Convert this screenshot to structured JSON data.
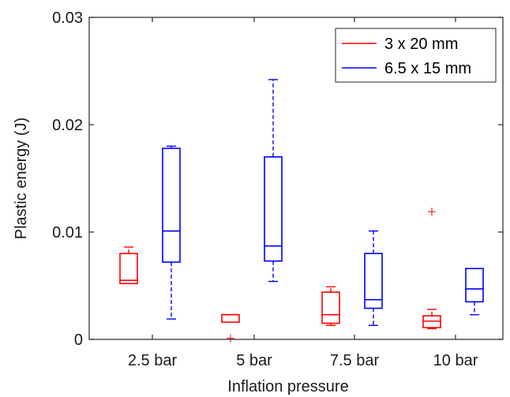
{
  "chart_data": {
    "type": "boxplot",
    "title": "",
    "xlabel": "Inflation pressure",
    "ylabel": "Plastic energy (J)",
    "categories": [
      "2.5 bar",
      "5 bar",
      "7.5 bar",
      "10 bar"
    ],
    "ylim": [
      0,
      0.03
    ],
    "yticks": [
      0,
      0.01,
      0.02,
      0.03
    ],
    "ytick_labels": [
      "0",
      "0.01",
      "0.02",
      "0.03"
    ],
    "grid": false,
    "legend_position": "top-right",
    "series": [
      {
        "name": "3 x 20 mm",
        "color": "#ff0000",
        "boxes": [
          {
            "category": "2.5 bar",
            "whisker_low": 0.0052,
            "q1": 0.0052,
            "median": 0.0055,
            "q3": 0.008,
            "whisker_high": 0.0086,
            "outliers": []
          },
          {
            "category": "5 bar",
            "whisker_low": 0.0016,
            "q1": 0.0016,
            "median": 0.0023,
            "q3": 0.0023,
            "whisker_high": 0.0023,
            "outliers": [
              0.0001
            ]
          },
          {
            "category": "7.5 bar",
            "whisker_low": 0.0013,
            "q1": 0.0015,
            "median": 0.0023,
            "q3": 0.0044,
            "whisker_high": 0.0049,
            "outliers": []
          },
          {
            "category": "10 bar",
            "whisker_low": 0.001,
            "q1": 0.0011,
            "median": 0.0017,
            "q3": 0.0022,
            "whisker_high": 0.0028,
            "outliers": [
              0.0119
            ]
          }
        ]
      },
      {
        "name": "6.5 x 15 mm",
        "color": "#0000ff",
        "boxes": [
          {
            "category": "2.5 bar",
            "whisker_low": 0.0019,
            "q1": 0.0072,
            "median": 0.0101,
            "q3": 0.0178,
            "whisker_high": 0.018,
            "outliers": []
          },
          {
            "category": "5 bar",
            "whisker_low": 0.0054,
            "q1": 0.0073,
            "median": 0.0087,
            "q3": 0.017,
            "whisker_high": 0.0242,
            "outliers": []
          },
          {
            "category": "7.5 bar",
            "whisker_low": 0.0013,
            "q1": 0.0029,
            "median": 0.0037,
            "q3": 0.008,
            "whisker_high": 0.0101,
            "outliers": []
          },
          {
            "category": "10 bar",
            "whisker_low": 0.0023,
            "q1": 0.0035,
            "median": 0.0047,
            "q3": 0.0066,
            "whisker_high": 0.0066,
            "outliers": []
          }
        ]
      }
    ]
  }
}
